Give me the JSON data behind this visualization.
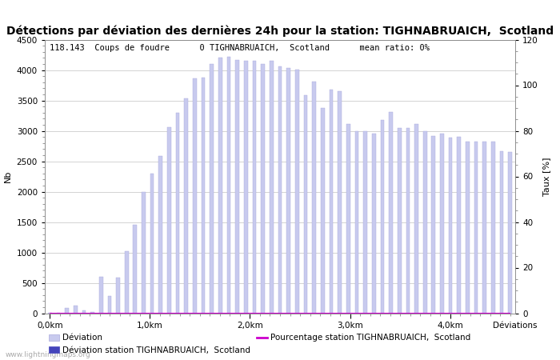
{
  "title": "Détections par déviation des dernières 24h pour la station: TIGHNABRUAICH,  Scotland",
  "annotation": "118.143  Coups de foudre      0 TIGHNABRUAICH,  Scotland      mean ratio: 0%",
  "xlabel_ticks": [
    "0,0km",
    "1,0km",
    "2,0km",
    "3,0km",
    "4,0km"
  ],
  "ylabel_left": "Nb",
  "ylabel_right": "Taux [%]",
  "ylim_left": [
    0,
    4500
  ],
  "ylim_right": [
    0,
    120
  ],
  "bar_color_global": "#c8caee",
  "bar_color_station": "#4444bb",
  "bar_edge_color": "#aaaadd",
  "background_color": "#ffffff",
  "grid_color": "#cccccc",
  "watermark": "www.lightningmaps.org",
  "legend_label_1": "Déviation",
  "legend_label_2": "Déviation station TIGHNABRUAICH,  Scotland",
  "legend_label_3": "Pourcentage station TIGHNABRUAICH,  Scotland",
  "legend_label_right": "Déviations",
  "bar_values": [
    5,
    10,
    80,
    120,
    40,
    20,
    600,
    280,
    580,
    1020,
    1460,
    1990,
    2300,
    2580,
    3060,
    3300,
    3530,
    3860,
    3870,
    4100,
    4200,
    4220,
    4160,
    4150,
    4150,
    4100,
    4150,
    4060,
    4030,
    4010,
    3590,
    3810,
    3380,
    3680,
    3650,
    3110,
    3000,
    3000,
    2960,
    3180,
    3310,
    3050,
    3050,
    3110,
    3000,
    2920,
    2950,
    2890,
    2900,
    2820,
    2820,
    2820,
    2820,
    2660,
    2650
  ],
  "x_tick_positions": [
    0.0,
    1.0,
    2.0,
    3.0,
    4.0
  ],
  "x_max_km": 4.6,
  "title_fontsize": 10,
  "tick_fontsize": 7.5,
  "label_fontsize": 8,
  "annotation_fontsize": 7.5
}
